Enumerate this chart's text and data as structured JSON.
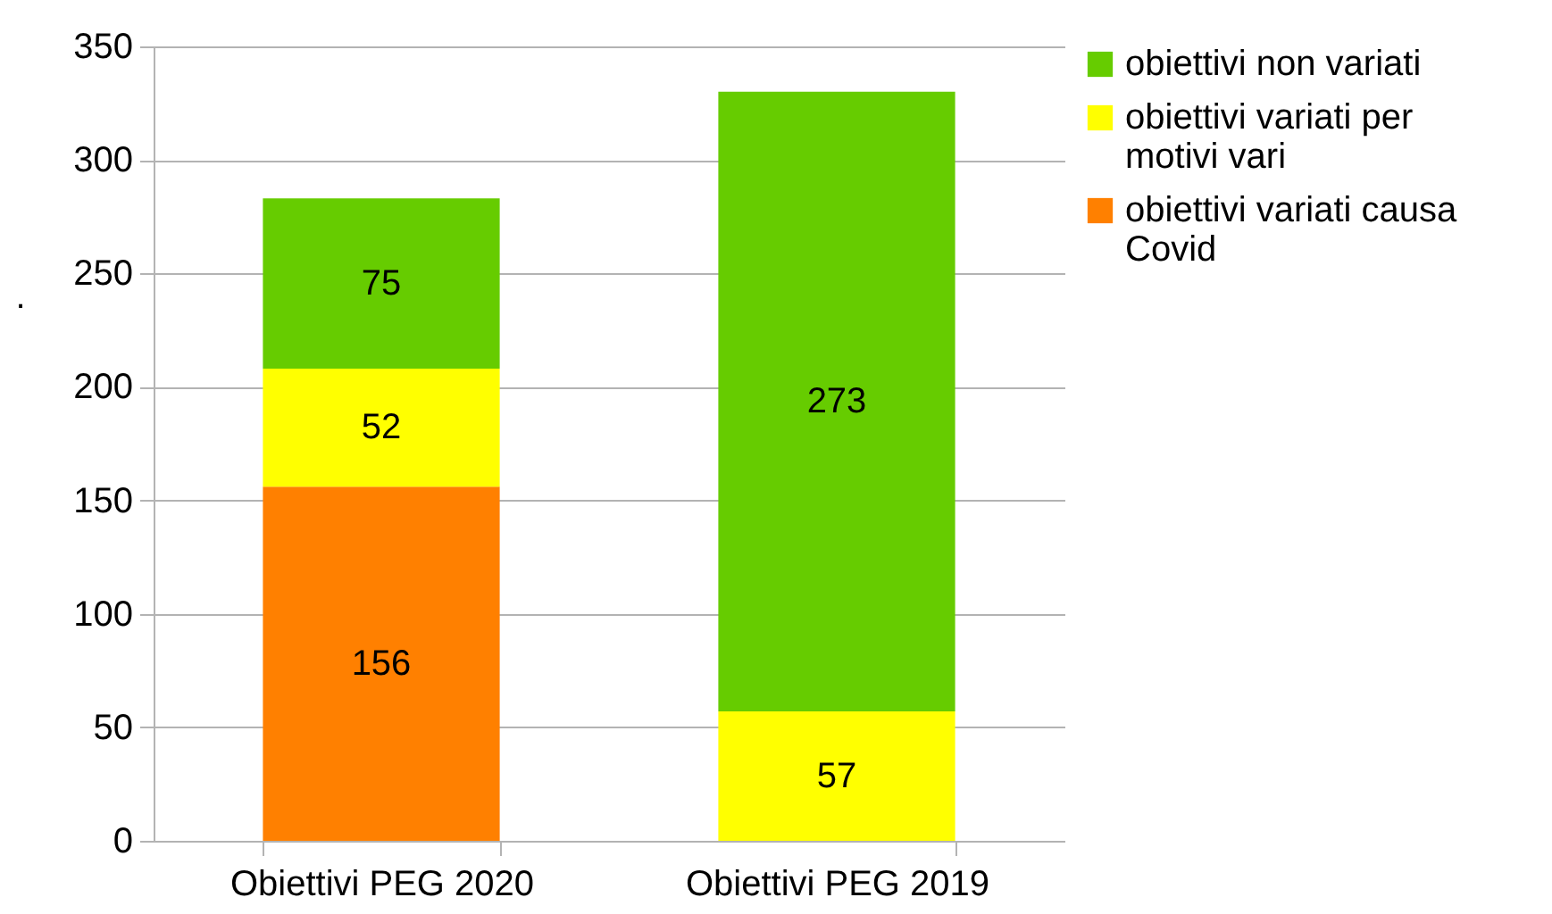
{
  "chart_data": {
    "type": "bar",
    "stacked": true,
    "ylabel": ".",
    "categories": [
      "Obiettivi PEG 2020",
      "Obiettivi PEG 2019"
    ],
    "series": [
      {
        "name": "obiettivi variati causa Covid",
        "color": "#ff8000",
        "values": [
          156,
          null
        ]
      },
      {
        "name": "obiettivi variati per motivi vari",
        "color": "#ffff00",
        "values": [
          52,
          57
        ]
      },
      {
        "name": "obiettivi non variati",
        "color": "#66cc00",
        "values": [
          75,
          273
        ]
      }
    ],
    "ylim": [
      0,
      350
    ],
    "yticks": [
      0,
      50,
      100,
      150,
      200,
      250,
      300,
      350
    ],
    "grid": "y",
    "legend": "right",
    "data_labels": true
  }
}
